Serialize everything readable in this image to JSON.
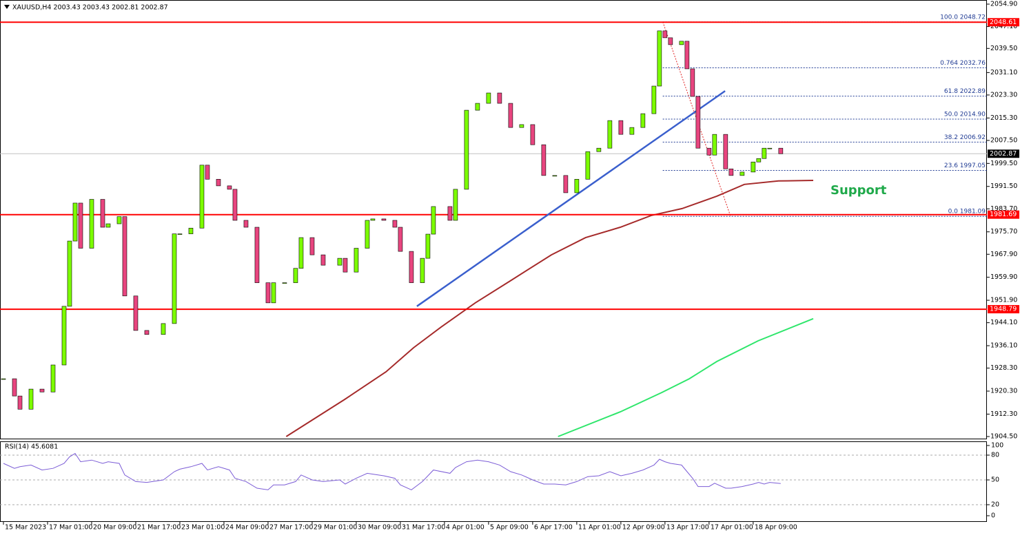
{
  "chart_data": {
    "type": "candlestick",
    "header": "XAUUSD,H4  2003.43 2003.43 2002.81 2002.87",
    "x": [
      0,
      2,
      3,
      5,
      7,
      9,
      11,
      12,
      13,
      14,
      16,
      18,
      19,
      21,
      22,
      24,
      26,
      29,
      31,
      32,
      34,
      36,
      37,
      39,
      41,
      42,
      44,
      46,
      48,
      49,
      51,
      53,
      54,
      56,
      58,
      61,
      62,
      64,
      66,
      67,
      69,
      71,
      72,
      74,
      76,
      77,
      78,
      81,
      82,
      84,
      86,
      88,
      90,
      92,
      94,
      96,
      98,
      100,
      102,
      104,
      106,
      108,
      110,
      112,
      114,
      116,
      118,
      119,
      120,
      121,
      123,
      124,
      125,
      126,
      128,
      129,
      131,
      132,
      134,
      136,
      137,
      138,
      139,
      141
    ],
    "closes": [
      1924.6,
      1918.6,
      1914,
      1921,
      1920,
      1929.4,
      1949.8,
      1972.5,
      1985.7,
      1970,
      1987,
      1977.3,
      1978.5,
      1981,
      1953.4,
      1941.4,
      1940,
      1943.8,
      1975,
      1975,
      1977,
      1998.9,
      1994,
      1991.7,
      1990.5,
      1979.7,
      1977.3,
      1958,
      1951,
      1958,
      1958,
      1963,
      1973.7,
      1967.7,
      1964.1,
      1966.5,
      1961.7,
      1970,
      1979.7,
      1980.2,
      1979.7,
      1977.3,
      1968.9,
      1958,
      1966.5,
      1974.9,
      1984.5,
      1979.7,
      1990.5,
      2018,
      2020.4,
      2024,
      2020.4,
      2012,
      2013,
      2006,
      1995.3,
      1995.3,
      1989.3,
      1994,
      2003.6,
      2004.8,
      2014.4,
      2009.6,
      2012,
      2016.8,
      2026.4,
      2045.6,
      2043.2,
      2040.8,
      2042,
      2032.4,
      2022.8,
      2004.8,
      2002.4,
      2009.6,
      1997.6,
      1995.3,
      1996.5,
      2000,
      2001.2,
      2004.8,
      2004.8,
      2002.87
    ],
    "up_color": "#7cfc00",
    "down_color": "#e8457f",
    "xlim": [
      0,
      178.4
    ],
    "ylim": [
      1903.78,
      2056.34
    ],
    "yticks": [
      {
        "value": 2054.9,
        "label": "2054.90"
      },
      {
        "value": 2047.1,
        "label": "2047.10"
      },
      {
        "value": 2039.5,
        "label": "2039.50"
      },
      {
        "value": 2031.1,
        "label": "2031.10"
      },
      {
        "value": 2023.3,
        "label": "2023.30"
      },
      {
        "value": 2015.3,
        "label": "2015.30"
      },
      {
        "value": 2007.5,
        "label": "2007.50"
      },
      {
        "value": 1999.5,
        "label": "1999.50"
      },
      {
        "value": 1991.5,
        "label": "1991.50"
      },
      {
        "value": 1983.7,
        "label": "1983.70"
      },
      {
        "value": 1975.7,
        "label": "1975.70"
      },
      {
        "value": 1967.9,
        "label": "1967.90"
      },
      {
        "value": 1959.9,
        "label": "1959.90"
      },
      {
        "value": 1951.9,
        "label": "1951.90"
      },
      {
        "value": 1944.1,
        "label": "1944.10"
      },
      {
        "value": 1936.1,
        "label": "1936.10"
      },
      {
        "value": 1928.3,
        "label": "1928.30"
      },
      {
        "value": 1920.3,
        "label": "1920.30"
      },
      {
        "value": 1912.3,
        "label": "1912.30"
      },
      {
        "value": 1904.5,
        "label": "1904.50"
      }
    ],
    "xticks": [
      {
        "value": 0,
        "label": "15 Mar 2023"
      },
      {
        "value": 8,
        "label": "17 Mar 01:00"
      },
      {
        "value": 16,
        "label": "20 Mar 09:00"
      },
      {
        "value": 24,
        "label": "21 Mar 17:00"
      },
      {
        "value": 32,
        "label": "23 Mar 01:00"
      },
      {
        "value": 40,
        "label": "24 Mar 09:00"
      },
      {
        "value": 48,
        "label": "27 Mar 17:00"
      },
      {
        "value": 56,
        "label": "29 Mar 01:00"
      },
      {
        "value": 64,
        "label": "30 Mar 09:00"
      },
      {
        "value": 72,
        "label": "31 Mar 17:00"
      },
      {
        "value": 80,
        "label": "4 Apr 01:00"
      },
      {
        "value": 88,
        "label": "5 Apr 09:00"
      },
      {
        "value": 96,
        "label": "6 Apr 17:00"
      },
      {
        "value": 104,
        "label": "11 Apr 01:00"
      },
      {
        "value": 112,
        "label": "12 Apr 09:00"
      },
      {
        "value": 120,
        "label": "13 Apr 17:00"
      },
      {
        "value": 128,
        "label": "17 Apr 01:00"
      },
      {
        "value": 136,
        "label": "18 Apr 09:00"
      }
    ],
    "moving_averages": [
      {
        "color": "#a52a2a",
        "x": [
          51.3,
          61.9,
          69.4,
          74.4,
          79.4,
          85.6,
          91.9,
          99.4,
          105.6,
          111.9,
          117.5,
          123.1,
          129.4,
          134.4,
          140.6,
          146.9
        ],
        "values": [
          1904.5,
          1917.4,
          1927.0,
          1935.4,
          1942.6,
          1951.0,
          1958.6,
          1967.7,
          1973.7,
          1977.3,
          1981.4,
          1983.8,
          1988.1,
          1992.2,
          1993.4,
          1993.6
        ]
      },
      {
        "color": "#2ee66b",
        "x": [
          100.6,
          111.9,
          119.4,
          124.4,
          129.4,
          136.9,
          146.9
        ],
        "values": [
          1904.5,
          1913.1,
          1919.8,
          1924.6,
          1930.6,
          1937.8,
          1945.5
        ]
      }
    ],
    "trendline": {
      "color": "#3a5fcd",
      "x": [
        75,
        130.9
      ],
      "values": [
        1949.8,
        2024.7
      ]
    },
    "levels": [
      {
        "value": 2048.61,
        "color": "#ff0000"
      },
      {
        "value": 1981.69,
        "color": "#ff0000"
      },
      {
        "value": 1948.79,
        "color": "#ff0000"
      }
    ],
    "current_price": 2002.87,
    "fibonacci": {
      "color": "#1f3a93",
      "diagonal_color": "#e02020",
      "x": [
        119.6,
        131.9
      ],
      "values": [
        2048.72,
        1981.09
      ],
      "levels": [
        {
          "value": 2048.72,
          "label": "100.0 2048.72"
        },
        {
          "value": 2032.76,
          "label": "0.764 2032.76"
        },
        {
          "value": 2022.89,
          "label": "61.8 2022.89"
        },
        {
          "value": 2014.9,
          "label": "50.0 2014.90"
        },
        {
          "value": 2006.92,
          "label": "38.2 2006.92"
        },
        {
          "value": 1997.05,
          "label": "23.6 1997.05"
        },
        {
          "value": 1981.09,
          "label": "0.0 1981.09"
        }
      ]
    },
    "annotation": "Support",
    "rsi": {
      "label": "RSI(14) 45.6081",
      "color": "#7b5cd6",
      "values": [
        70,
        64,
        66,
        68,
        62,
        64,
        70,
        78,
        82,
        72,
        74,
        70,
        72,
        70,
        56,
        48,
        47,
        50,
        60,
        63,
        66,
        70,
        62,
        66,
        62,
        52,
        48,
        40,
        38,
        44,
        44,
        48,
        56,
        50,
        48,
        50,
        45,
        52,
        58,
        57,
        55,
        52,
        44,
        38,
        48,
        55,
        62,
        58,
        65,
        72,
        74,
        72,
        68,
        60,
        56,
        50,
        45,
        45,
        44,
        48,
        54,
        55,
        60,
        55,
        58,
        62,
        68,
        75,
        72,
        70,
        68,
        60,
        52,
        42,
        42,
        46,
        40,
        40,
        42,
        45,
        47,
        45,
        47,
        45.6
      ],
      "ylim": [
        0,
        100
      ],
      "yticks": [
        100,
        80,
        50,
        20,
        0
      ],
      "levels": [
        80,
        50,
        20
      ]
    }
  }
}
